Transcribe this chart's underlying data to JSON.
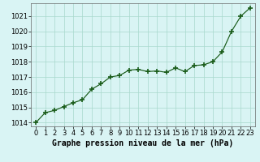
{
  "x": [
    0,
    1,
    2,
    3,
    4,
    5,
    6,
    7,
    8,
    9,
    10,
    11,
    12,
    13,
    14,
    15,
    16,
    17,
    18,
    19,
    20,
    21,
    22,
    23
  ],
  "y": [
    1014.0,
    1014.65,
    1014.8,
    1015.05,
    1015.3,
    1015.5,
    1016.2,
    1016.55,
    1017.0,
    1017.1,
    1017.45,
    1017.5,
    1017.35,
    1017.4,
    1017.3,
    1017.6,
    1017.35,
    1017.75,
    1017.8,
    1018.0,
    1018.65,
    1020.0,
    1021.0,
    1021.55
  ],
  "ylim": [
    1013.75,
    1021.85
  ],
  "xlim": [
    -0.5,
    23.5
  ],
  "yticks": [
    1014,
    1015,
    1016,
    1017,
    1018,
    1019,
    1020,
    1021
  ],
  "xticks": [
    0,
    1,
    2,
    3,
    4,
    5,
    6,
    7,
    8,
    9,
    10,
    11,
    12,
    13,
    14,
    15,
    16,
    17,
    18,
    19,
    20,
    21,
    22,
    23
  ],
  "line_color": "#1a5c1a",
  "marker": "+",
  "marker_size": 4,
  "marker_lw": 1.2,
  "line_width": 0.85,
  "bg_color": "#d9f4f4",
  "grid_color": "#a8d8cc",
  "grid_lw": 0.5,
  "xlabel": "Graphe pression niveau de la mer (hPa)",
  "xlabel_fontsize": 7.0,
  "tick_fontsize": 6.0,
  "spine_color": "#666666"
}
